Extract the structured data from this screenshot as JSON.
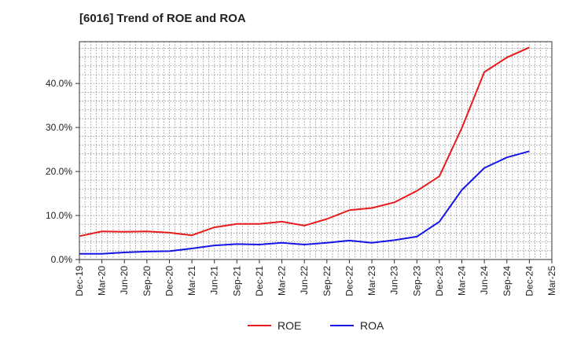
{
  "chart_data": {
    "type": "line",
    "title": "[6016]  Trend of ROE and ROA",
    "xlabel": "",
    "ylabel": "",
    "x": [
      "Dec-19",
      "Mar-20",
      "Jun-20",
      "Sep-20",
      "Dec-20",
      "Mar-21",
      "Jun-21",
      "Sep-21",
      "Dec-21",
      "Mar-22",
      "Jun-22",
      "Sep-22",
      "Dec-22",
      "Mar-23",
      "Jun-23",
      "Sep-23",
      "Dec-23",
      "Mar-24",
      "Jun-24",
      "Sep-24",
      "Dec-24",
      "Mar-25"
    ],
    "y_ticks": [
      0,
      10,
      20,
      30,
      40
    ],
    "y_tick_labels": [
      "0.0%",
      "10.0%",
      "20.0%",
      "30.0%",
      "40.0%"
    ],
    "ylim": [
      0,
      49.5
    ],
    "grid": true,
    "legend_position": "bottom",
    "series": [
      {
        "name": "ROE",
        "color": "#e81c1c",
        "values": [
          5.3,
          6.4,
          6.3,
          6.4,
          6.1,
          5.5,
          7.3,
          8.1,
          8.1,
          8.6,
          7.7,
          9.2,
          11.2,
          11.7,
          13.0,
          15.6,
          18.9,
          29.9,
          42.6,
          45.9,
          48.2,
          null
        ]
      },
      {
        "name": "ROA",
        "color": "#1515e6",
        "values": [
          1.3,
          1.3,
          1.6,
          1.8,
          1.9,
          2.5,
          3.2,
          3.5,
          3.4,
          3.8,
          3.4,
          3.8,
          4.3,
          3.8,
          4.4,
          5.2,
          8.6,
          15.8,
          20.8,
          23.2,
          24.6,
          null
        ]
      }
    ]
  }
}
